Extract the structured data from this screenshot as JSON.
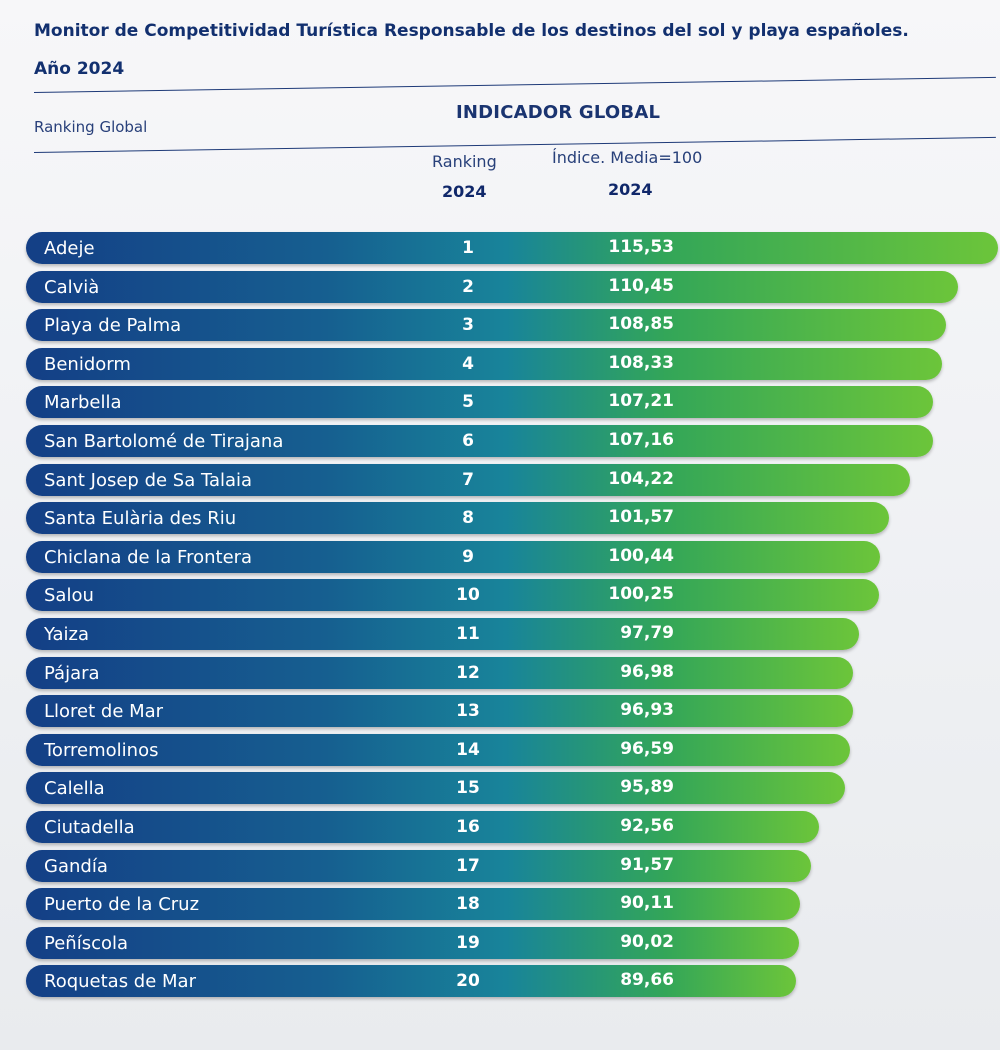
{
  "header": {
    "title": "Monitor de Competitividad Turística Responsable de los destinos del sol y playa españoles. Año 2024",
    "ranking_global": "Ranking Global",
    "indicator": "INDICADOR GLOBAL",
    "col_rank_label": "Ranking",
    "col_rank_year": "2024",
    "col_index_label": "Índice. Media=100",
    "col_index_year": "2024"
  },
  "chart_data": {
    "type": "bar",
    "orientation": "horizontal",
    "categories": [
      "Adeje",
      "Calvià",
      "Playa de Palma",
      "Benidorm",
      "Marbella",
      "San Bartolomé de Tirajana",
      "Sant Josep de Sa Talaia",
      "Santa Eulària des Riu",
      "Chiclana de la Frontera",
      "Salou",
      "Yaiza",
      "Pájara",
      "Lloret de Mar",
      "Torremolinos",
      "Calella",
      "Ciutadella",
      "Gandía",
      "Puerto de la Cruz",
      "Peñíscola",
      "Roquetas de Mar"
    ],
    "ranks": [
      "1",
      "2",
      "3",
      "4",
      "5",
      "6",
      "7",
      "8",
      "9",
      "10",
      "11",
      "12",
      "13",
      "14",
      "15",
      "16",
      "17",
      "18",
      "19",
      "20"
    ],
    "values": [
      115.53,
      110.45,
      108.85,
      108.33,
      107.21,
      107.16,
      104.22,
      101.57,
      100.44,
      100.25,
      97.79,
      96.98,
      96.93,
      96.59,
      95.89,
      92.56,
      91.57,
      90.11,
      90.02,
      89.66
    ],
    "value_labels": [
      "115,53",
      "110,45",
      "108,85",
      "108,33",
      "107,21",
      "107,16",
      "104,22",
      "101,57",
      "100,44",
      "100,25",
      "97,79",
      "96,98",
      "96,93",
      "96,59",
      "95,89",
      "92,56",
      "91,57",
      "90,11",
      "90,02",
      "89,66"
    ],
    "colors": {
      "bar_start": "#143f86",
      "bar_end": "#6cc53a",
      "title": "#12306f"
    }
  }
}
